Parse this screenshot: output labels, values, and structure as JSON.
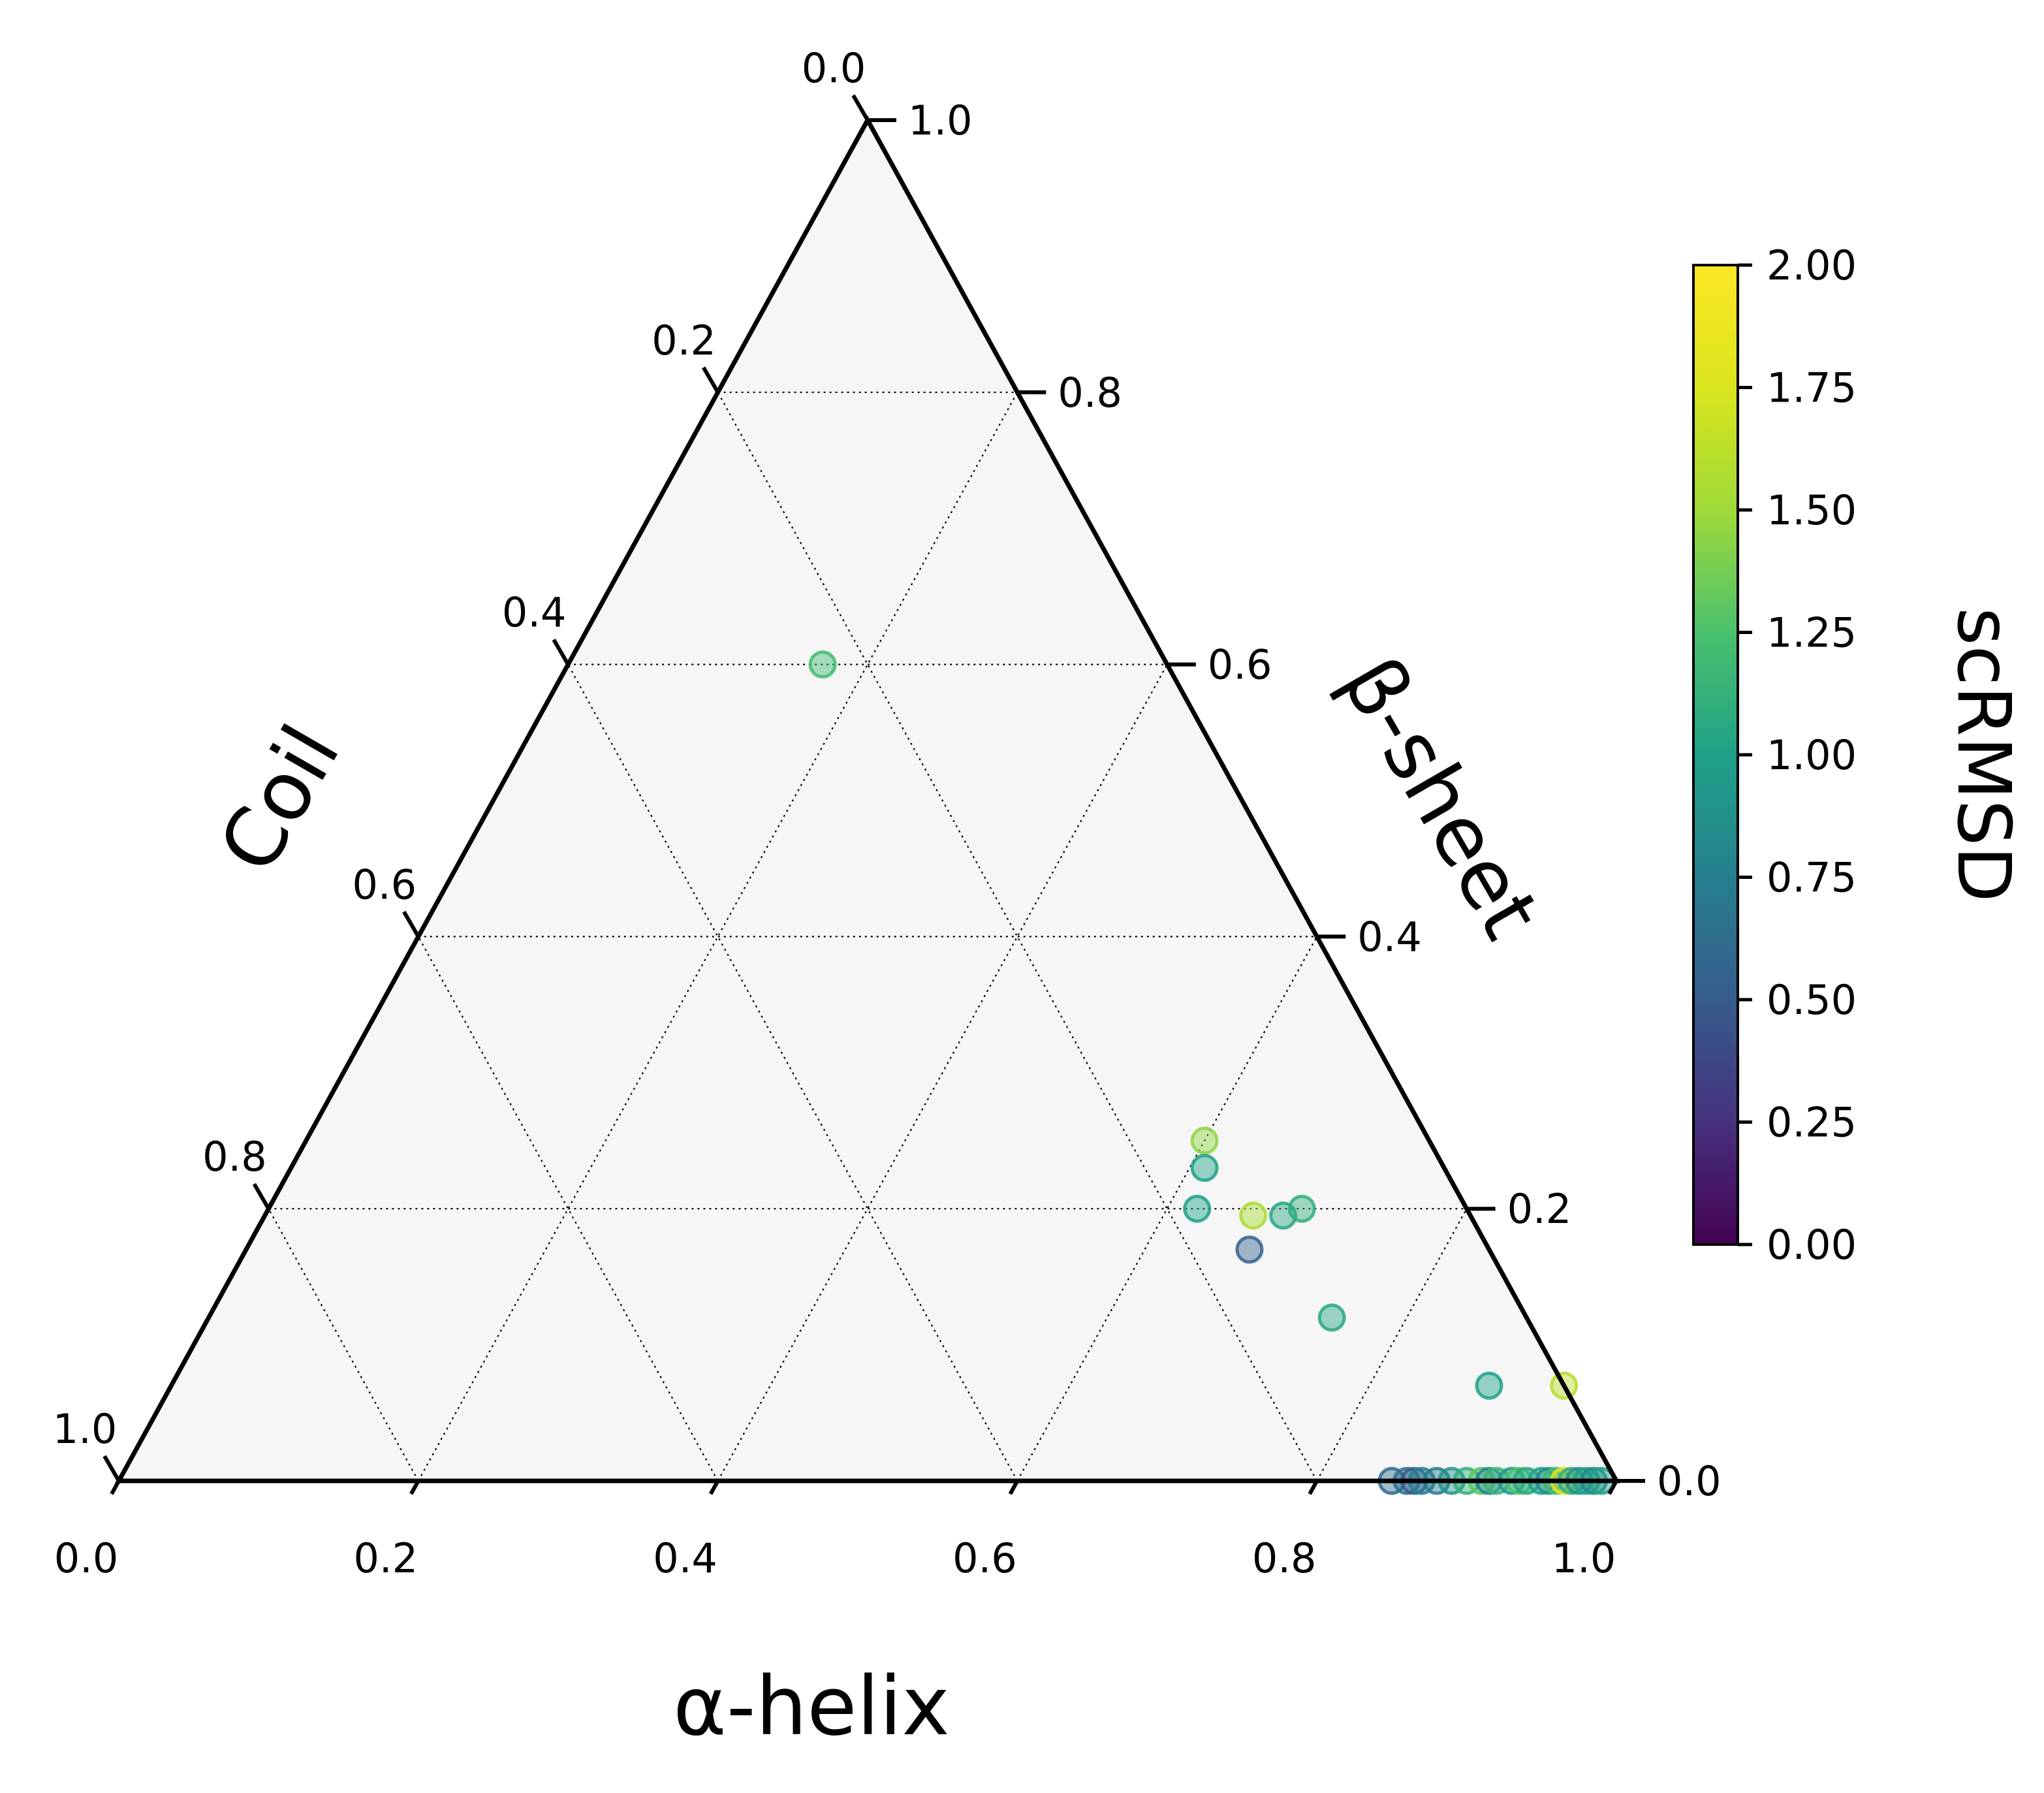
{
  "chart_data": {
    "type": "scatter",
    "subtype": "ternary",
    "axes": {
      "bottom": {
        "label": "α-helix",
        "ticks": [
          "0.0",
          "0.2",
          "0.4",
          "0.6",
          "0.8",
          "1.0"
        ],
        "range": [
          0,
          1
        ]
      },
      "right": {
        "label": "β-sheet",
        "ticks": [
          "0.0",
          "0.2",
          "0.4",
          "0.6",
          "0.8",
          "1.0"
        ],
        "range": [
          0,
          1
        ]
      },
      "left": {
        "label": "Coil",
        "ticks": [
          "0.0",
          "0.2",
          "0.4",
          "0.6",
          "0.8",
          "1.0"
        ],
        "range": [
          0,
          1
        ]
      }
    },
    "grid": true,
    "grid_style": "dotted",
    "background_color": "#f6f6f6",
    "colorbar": {
      "label": "scRMSD",
      "colormap": "viridis",
      "range": [
        0,
        2
      ],
      "ticks": [
        "0.00",
        "0.25",
        "0.50",
        "0.75",
        "1.00",
        "1.25",
        "1.50",
        "1.75",
        "2.00"
      ],
      "placement": "right"
    },
    "marker_alpha": 0.45,
    "points": [
      {
        "helix": 0.17,
        "sheet": 0.6,
        "coil": 0.23,
        "scrmsd": 1.2
      },
      {
        "helix": 0.6,
        "sheet": 0.25,
        "coil": 0.15,
        "scrmsd": 1.45
      },
      {
        "helix": 0.61,
        "sheet": 0.23,
        "coil": 0.16,
        "scrmsd": 1.0
      },
      {
        "helix": 0.62,
        "sheet": 0.2,
        "coil": 0.18,
        "scrmsd": 1.0
      },
      {
        "helix": 0.66,
        "sheet": 0.195,
        "coil": 0.145,
        "scrmsd": 1.55
      },
      {
        "helix": 0.68,
        "sheet": 0.195,
        "coil": 0.125,
        "scrmsd": 1.05
      },
      {
        "helix": 0.69,
        "sheet": 0.2,
        "coil": 0.11,
        "scrmsd": 1.1
      },
      {
        "helix": 0.67,
        "sheet": 0.17,
        "coil": 0.16,
        "scrmsd": 0.55
      },
      {
        "helix": 0.75,
        "sheet": 0.12,
        "coil": 0.13,
        "scrmsd": 1.05
      },
      {
        "helix": 0.88,
        "sheet": 0.07,
        "coil": 0.05,
        "scrmsd": 1.0
      },
      {
        "helix": 0.93,
        "sheet": 0.07,
        "coil": 0.0,
        "scrmsd": 1.6
      },
      {
        "helix": 0.85,
        "sheet": 0.0,
        "coil": 0.15,
        "scrmsd": 0.6
      },
      {
        "helix": 0.86,
        "sheet": 0.0,
        "coil": 0.14,
        "scrmsd": 0.65
      },
      {
        "helix": 0.865,
        "sheet": 0.0,
        "coil": 0.135,
        "scrmsd": 0.5
      },
      {
        "helix": 0.87,
        "sheet": 0.0,
        "coil": 0.13,
        "scrmsd": 0.75
      },
      {
        "helix": 0.88,
        "sheet": 0.0,
        "coil": 0.12,
        "scrmsd": 0.7
      },
      {
        "helix": 0.89,
        "sheet": 0.0,
        "coil": 0.11,
        "scrmsd": 0.9
      },
      {
        "helix": 0.9,
        "sheet": 0.0,
        "coil": 0.1,
        "scrmsd": 1.1
      },
      {
        "helix": 0.91,
        "sheet": 0.0,
        "coil": 0.09,
        "scrmsd": 1.3
      },
      {
        "helix": 0.915,
        "sheet": 0.0,
        "coil": 0.085,
        "scrmsd": 0.8
      },
      {
        "helix": 0.92,
        "sheet": 0.0,
        "coil": 0.08,
        "scrmsd": 1.15
      },
      {
        "helix": 0.93,
        "sheet": 0.0,
        "coil": 0.07,
        "scrmsd": 0.95
      },
      {
        "helix": 0.935,
        "sheet": 0.0,
        "coil": 0.065,
        "scrmsd": 1.25
      },
      {
        "helix": 0.94,
        "sheet": 0.0,
        "coil": 0.06,
        "scrmsd": 1.05
      },
      {
        "helix": 0.95,
        "sheet": 0.0,
        "coil": 0.05,
        "scrmsd": 1.0
      },
      {
        "helix": 0.955,
        "sheet": 0.0,
        "coil": 0.045,
        "scrmsd": 0.85
      },
      {
        "helix": 0.96,
        "sheet": 0.0,
        "coil": 0.04,
        "scrmsd": 1.2
      },
      {
        "helix": 0.965,
        "sheet": 0.0,
        "coil": 0.035,
        "scrmsd": 1.8
      },
      {
        "helix": 0.97,
        "sheet": 0.0,
        "coil": 0.03,
        "scrmsd": 1.1
      },
      {
        "helix": 0.975,
        "sheet": 0.0,
        "coil": 0.025,
        "scrmsd": 0.9
      },
      {
        "helix": 0.98,
        "sheet": 0.0,
        "coil": 0.02,
        "scrmsd": 1.0
      },
      {
        "helix": 0.985,
        "sheet": 0.0,
        "coil": 0.015,
        "scrmsd": 0.8
      },
      {
        "helix": 0.99,
        "sheet": 0.0,
        "coil": 0.01,
        "scrmsd": 1.0
      }
    ]
  }
}
